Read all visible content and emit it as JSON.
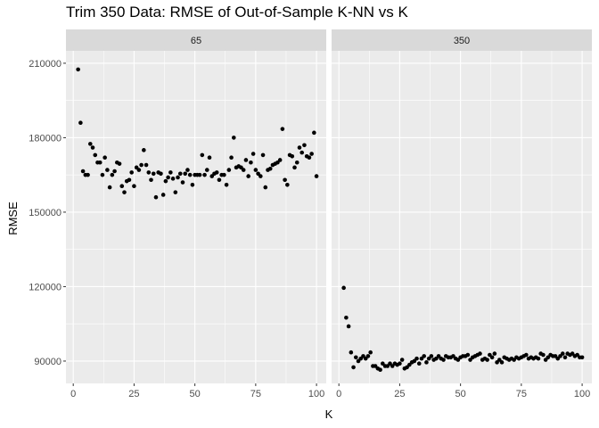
{
  "colors": {
    "panel_bg": "#ebebeb",
    "strip_bg": "#d9d9d9",
    "grid_major": "#ffffff",
    "point": "#000000",
    "tick": "#333333"
  },
  "chart_data": {
    "type": "scatter",
    "title": "Trim 350 Data: RMSE of Out-of-Sample K-NN vs K",
    "xlabel": "K",
    "ylabel": "RMSE",
    "xlim": [
      -3,
      104
    ],
    "ylim": [
      81000,
      215000
    ],
    "xticks": [
      0,
      25,
      50,
      75,
      100
    ],
    "xtick_labels": [
      "0",
      "25",
      "50",
      "75",
      "100"
    ],
    "yticks": [
      90000,
      120000,
      150000,
      180000,
      210000
    ],
    "ytick_labels": [
      "90000",
      "120000",
      "150000",
      "180000",
      "210000"
    ],
    "facets": [
      {
        "label": "65",
        "series": [
          {
            "name": "65",
            "x": [
              2,
              3,
              4,
              5,
              6,
              7,
              8,
              9,
              10,
              11,
              12,
              13,
              14,
              15,
              16,
              17,
              18,
              19,
              20,
              21,
              22,
              23,
              24,
              25,
              26,
              27,
              28,
              29,
              30,
              31,
              32,
              33,
              34,
              35,
              36,
              37,
              38,
              39,
              40,
              41,
              42,
              43,
              44,
              45,
              46,
              47,
              48,
              49,
              50,
              51,
              52,
              53,
              54,
              55,
              56,
              57,
              58,
              59,
              60,
              61,
              62,
              63,
              64,
              65,
              66,
              67,
              68,
              69,
              70,
              71,
              72,
              73,
              74,
              75,
              76,
              77,
              78,
              79,
              80,
              81,
              82,
              83,
              84,
              85,
              86,
              87,
              88,
              89,
              90,
              91,
              92,
              93,
              94,
              95,
              96,
              97,
              98,
              99,
              100
            ],
            "y": [
              207500,
              186000,
              166500,
              165000,
              165000,
              177500,
              176000,
              173000,
              170000,
              170000,
              165000,
              172000,
              167000,
              160000,
              165000,
              166500,
              170000,
              169500,
              160500,
              158000,
              162500,
              163000,
              166000,
              160500,
              168000,
              167000,
              169000,
              175000,
              169000,
              166000,
              163000,
              165500,
              156000,
              166000,
              165500,
              157000,
              162500,
              164000,
              166000,
              163500,
              158000,
              164000,
              165500,
              162000,
              165500,
              167000,
              165000,
              161000,
              165000,
              165000,
              165000,
              173000,
              165000,
              167000,
              172000,
              164500,
              165500,
              166000,
              163000,
              165000,
              165000,
              161000,
              167000,
              172000,
              180000,
              168000,
              168500,
              168000,
              167000,
              171000,
              164500,
              170000,
              173500,
              167000,
              165500,
              164500,
              173000,
              160000,
              167000,
              167500,
              169000,
              169500,
              170000,
              171000,
              183500,
              163000,
              161000,
              173000,
              172500,
              168000,
              170000,
              176000,
              174000,
              177000,
              172500,
              172000,
              173500,
              182000,
              164500
            ]
          }
        ]
      },
      {
        "label": "350",
        "series": [
          {
            "name": "350",
            "x": [
              2,
              3,
              4,
              5,
              6,
              7,
              8,
              9,
              10,
              11,
              12,
              13,
              14,
              15,
              16,
              17,
              18,
              19,
              20,
              21,
              22,
              23,
              24,
              25,
              26,
              27,
              28,
              29,
              30,
              31,
              32,
              33,
              34,
              35,
              36,
              37,
              38,
              39,
              40,
              41,
              42,
              43,
              44,
              45,
              46,
              47,
              48,
              49,
              50,
              51,
              52,
              53,
              54,
              55,
              56,
              57,
              58,
              59,
              60,
              61,
              62,
              63,
              64,
              65,
              66,
              67,
              68,
              69,
              70,
              71,
              72,
              73,
              74,
              75,
              76,
              77,
              78,
              79,
              80,
              81,
              82,
              83,
              84,
              85,
              86,
              87,
              88,
              89,
              90,
              91,
              92,
              93,
              94,
              95,
              96,
              97,
              98,
              99,
              100
            ],
            "y": [
              119500,
              107500,
              104000,
              93500,
              87500,
              91500,
              90000,
              91000,
              92000,
              91000,
              92000,
              93500,
              88000,
              88000,
              87000,
              86500,
              89000,
              88000,
              88000,
              89000,
              88000,
              89000,
              88500,
              89000,
              90500,
              87000,
              87500,
              88500,
              89500,
              90000,
              91000,
              89000,
              91000,
              92000,
              89500,
              91000,
              92000,
              90500,
              91000,
              92000,
              91000,
              90500,
              92000,
              91500,
              91500,
              92000,
              91000,
              90500,
              91500,
              92000,
              92000,
              92500,
              90500,
              91500,
              92000,
              92500,
              93000,
              90500,
              91000,
              90500,
              92500,
              91500,
              93000,
              89500,
              90500,
              89500,
              91500,
              91000,
              90500,
              91000,
              90500,
              91500,
              91000,
              91500,
              92000,
              92500,
              91000,
              91500,
              91000,
              91500,
              91000,
              93000,
              92500,
              90500,
              91500,
              92500,
              92000,
              92000,
              91000,
              92000,
              93000,
              91500,
              93000,
              92500,
              93000,
              92000,
              92500,
              91500,
              91500
            ]
          }
        ]
      }
    ]
  }
}
